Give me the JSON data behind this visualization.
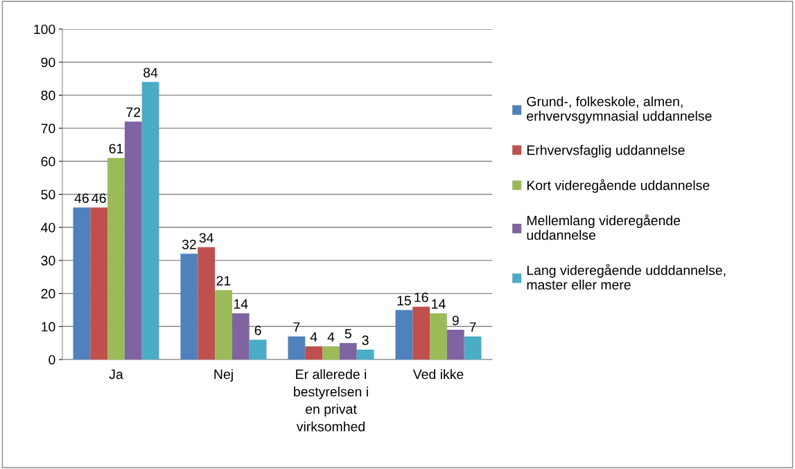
{
  "chart_data": {
    "type": "bar",
    "categories": [
      "Ja",
      "Nej",
      "Er allerede i bestyrelsen i en privat virksomhed",
      "Ved ikke"
    ],
    "series": [
      {
        "name": "Grund-, folkeskole, almen, erhvervsgymnasial uddannelse",
        "color": "#4f81bd",
        "values": [
          46,
          32,
          7,
          15
        ]
      },
      {
        "name": "Erhvervsfaglig uddannelse",
        "color": "#c0504d",
        "values": [
          46,
          34,
          4,
          16
        ]
      },
      {
        "name": "Kort videregående uddannelse",
        "color": "#9bbb59",
        "values": [
          61,
          21,
          4,
          14
        ]
      },
      {
        "name": "Mellemlang videregående uddannelse",
        "color": "#8064a2",
        "values": [
          72,
          14,
          5,
          9
        ]
      },
      {
        "name": "Lang videregående udddannelse, master eller mere",
        "color": "#4bacc6",
        "values": [
          84,
          6,
          3,
          7
        ]
      }
    ],
    "ylim": [
      0,
      100
    ],
    "yticks": [
      0,
      10,
      20,
      30,
      40,
      50,
      60,
      70,
      80,
      90,
      100
    ],
    "grid": "y",
    "legend": "right",
    "data_labels": true
  }
}
